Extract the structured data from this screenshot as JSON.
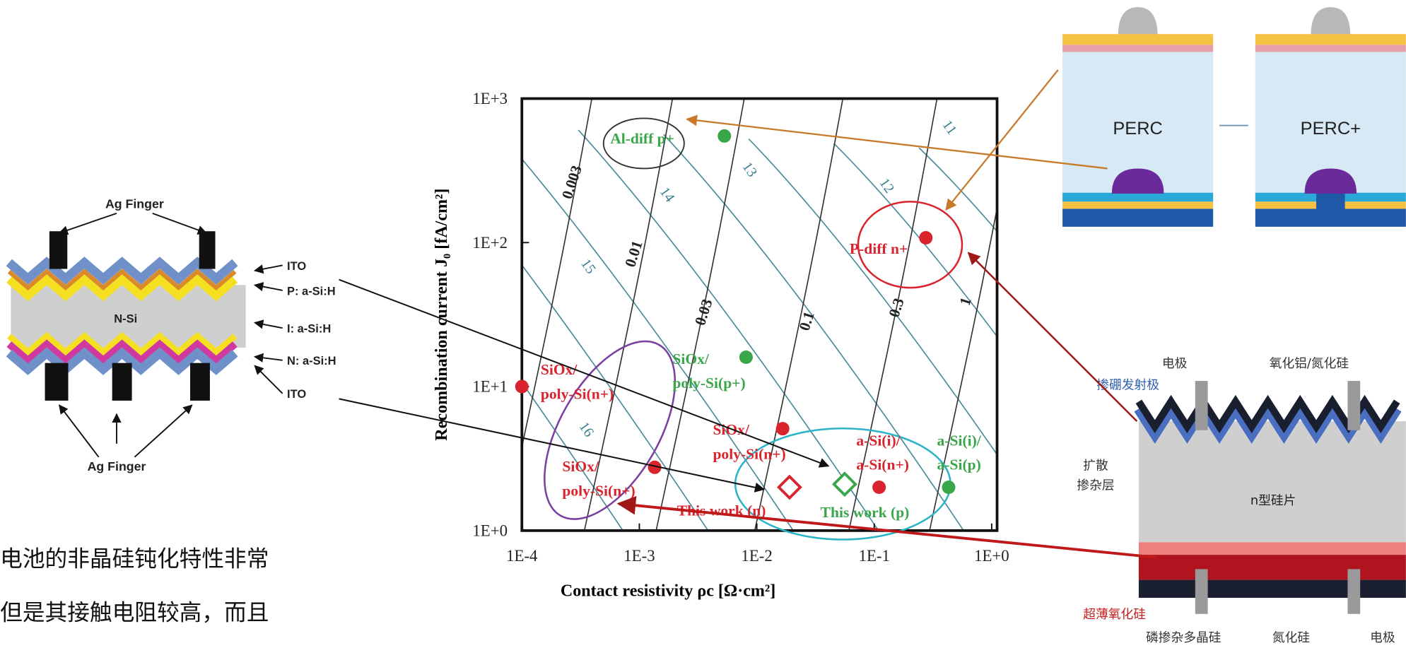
{
  "chart_data": {
    "type": "scatter",
    "x_label": "Contact resistivity ρc [Ω·cm²]",
    "y_label": "Recombination current J₀ [fA/cm²]",
    "xscale": "log",
    "yscale": "log",
    "xlim": [
      0.0001,
      1
    ],
    "ylim": [
      1,
      1000
    ],
    "xticks": [
      {
        "value": 0.0001,
        "label": "1E-4"
      },
      {
        "value": 0.001,
        "label": "1E-3"
      },
      {
        "value": 0.01,
        "label": "1E-2"
      },
      {
        "value": 0.1,
        "label": "1E-1"
      },
      {
        "value": 1,
        "label": "1E+0"
      }
    ],
    "yticks": [
      {
        "value": 1,
        "label": "1E+0"
      },
      {
        "value": 10,
        "label": "1E+1"
      },
      {
        "value": 100,
        "label": "1E+2"
      },
      {
        "value": 1000,
        "label": "1E+3"
      }
    ],
    "points": [
      {
        "x": 0.0053,
        "y": 550,
        "color": "#3aa64a",
        "marker": "circle",
        "label": [
          "Al-diff p+"
        ]
      },
      {
        "x": 0.275,
        "y": 108,
        "color": "#d9232d",
        "marker": "circle",
        "label": [
          "P-diff n+"
        ]
      },
      {
        "x": 0.0081,
        "y": 16,
        "color": "#3aa64a",
        "marker": "circle",
        "label": [
          "SiOx/",
          "poly-Si(p+)"
        ]
      },
      {
        "x": 0.0001,
        "y": 10,
        "color": "#d9232d",
        "marker": "circle",
        "label": [
          "SiOx/",
          "poly-Si(n+)"
        ]
      },
      {
        "x": 0.0166,
        "y": 5.1,
        "color": "#d9232d",
        "marker": "circle",
        "label": [
          "SiOx/",
          "poly-Si(n+)"
        ]
      },
      {
        "x": 0.00135,
        "y": 2.75,
        "color": "#d9232d",
        "marker": "circle",
        "label": [
          "SiOx/",
          "poly-Si(n+)"
        ]
      },
      {
        "x": 0.11,
        "y": 2.0,
        "color": "#d9232d",
        "marker": "circle",
        "label": [
          "a-Si(i)/",
          "a-Si(n+)"
        ]
      },
      {
        "x": 0.43,
        "y": 2.0,
        "color": "#3aa64a",
        "marker": "circle",
        "label": [
          "a-Si(i)/",
          "a-Si(p)"
        ]
      },
      {
        "x": 0.019,
        "y": 2.0,
        "color": "#d9232d",
        "marker": "diamond",
        "label": [
          "This work (n)"
        ]
      },
      {
        "x": 0.056,
        "y": 2.1,
        "color": "#3aa64a",
        "marker": "diamond",
        "label": [
          "This work (p)"
        ]
      }
    ],
    "contact_resistivity_contours": [
      0.003,
      0.01,
      0.03,
      0.1,
      0.3,
      1
    ],
    "efficiency_contours": [
      11,
      12,
      13,
      14,
      15,
      16
    ]
  },
  "hjt_diagram": {
    "top_label": "Ag Finger",
    "body": "N-Si",
    "layers": [
      "ITO",
      "P: a-Si:H",
      "I: a-Si:H",
      "N: a-Si:H",
      "ITO"
    ],
    "bottom_label": "Ag Finger"
  },
  "perc_diagram": {
    "left": "PERC",
    "right": "PERC+"
  },
  "topcon_diagram": {
    "electrode_top": "电极",
    "passivation_top": "氧化铝/氮化硅",
    "emitter": "掺硼发射极",
    "diffusion": [
      "扩散",
      "掺杂层"
    ],
    "wafer": "n型硅片",
    "tunnel_oxide": "超薄氧化硅",
    "poly": "磷掺杂多晶硅",
    "nitride": "氮化硅",
    "electrode_bottom": "电极"
  },
  "caption_lines": [
    "电池的非晶硅钝化特性非常",
    "但是其接触电阻较高，而且"
  ]
}
